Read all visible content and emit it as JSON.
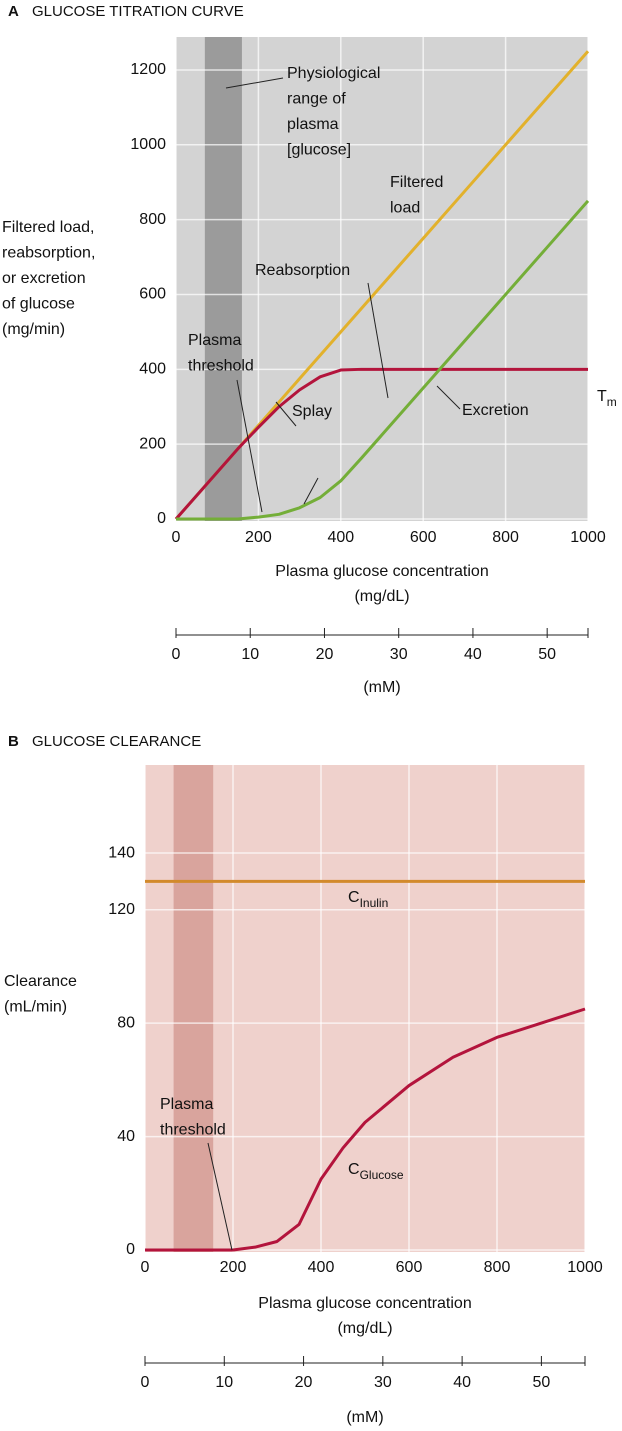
{
  "chart_data": [
    {
      "type": "line",
      "panel_label": "A",
      "title": "GLUCOSE TITRATION CURVE",
      "x": [
        0,
        50,
        100,
        150,
        200,
        250,
        300,
        350,
        400,
        450,
        500,
        600,
        700,
        800,
        900,
        1000
      ],
      "series": [
        {
          "color": "#e2b12c",
          "values": [
            0,
            62.5,
            125,
            187.5,
            250,
            312.5,
            375,
            437.5,
            500,
            562.5,
            625,
            750,
            875,
            1000,
            1125,
            1250
          ]
        },
        {
          "color": "#b3143c",
          "values": [
            0,
            62.5,
            125,
            187.5,
            245,
            300,
            345,
            380,
            398,
            400,
            400,
            400,
            400,
            400,
            400,
            400
          ]
        },
        {
          "color": "#74ae38",
          "values": [
            0,
            0,
            0,
            0,
            5,
            12.5,
            30,
            57.5,
            102,
            162.5,
            225,
            350,
            475,
            600,
            725,
            850
          ]
        }
      ],
      "xlim": [
        0,
        1000
      ],
      "xticks": [
        0,
        200,
        400,
        600,
        800,
        1000
      ],
      "ylim": [
        0,
        1280
      ],
      "yticks": [
        0,
        200,
        400,
        600,
        800,
        1000,
        1200
      ],
      "grid": true,
      "background": "#d3d3d3",
      "band": {
        "range": [
          70,
          160
        ],
        "color": "#9b9b9b"
      },
      "xlabel": [
        "Plasma glucose concentration",
        "(mg/dL)"
      ],
      "ylabel": [
        "Filtered load,",
        "reabsorption,",
        "or excretion",
        "of glucose",
        "(mg/min)"
      ],
      "x2lim": [
        0,
        55.5
      ],
      "x2ticks": [
        0,
        10,
        20,
        30,
        40,
        50
      ],
      "x2label": "(mM)",
      "annotations": [
        {
          "text": [
            "Physiological",
            "range of",
            "plasma",
            "[glucose]"
          ]
        },
        {
          "text": [
            "Filtered",
            "load"
          ]
        },
        {
          "text": [
            "Reabsorption"
          ]
        },
        {
          "text": [
            "Plasma",
            "threshold"
          ]
        },
        {
          "text": [
            "Splay"
          ]
        },
        {
          "text": [
            "Excretion"
          ]
        },
        {
          "text": [
            "T"
          ],
          "sub": "m"
        }
      ]
    },
    {
      "type": "line",
      "panel_label": "B",
      "title": "GLUCOSE CLEARANCE",
      "x": [
        0,
        100,
        200,
        250,
        300,
        350,
        400,
        450,
        500,
        600,
        700,
        800,
        900,
        1000
      ],
      "series": [
        {
          "color": "#d28a2c",
          "values": [
            130,
            130,
            130,
            130,
            130,
            130,
            130,
            130,
            130,
            130,
            130,
            130,
            130,
            130
          ]
        },
        {
          "color": "#b3143c",
          "values": [
            0,
            0,
            0,
            1,
            3,
            9,
            25,
            36,
            45,
            58,
            68,
            75,
            80,
            85
          ]
        }
      ],
      "xlim": [
        0,
        1000
      ],
      "xticks": [
        0,
        200,
        400,
        600,
        800,
        1000
      ],
      "ylim": [
        0,
        170
      ],
      "yticks": [
        0,
        40,
        80,
        120,
        140
      ],
      "grid": true,
      "background": "#efd1cc",
      "band": {
        "range": [
          65,
          155
        ],
        "color": "#d9a49d"
      },
      "xlabel": [
        "Plasma glucose concentration",
        "(mg/dL)"
      ],
      "ylabel": [
        "Clearance",
        "(mL/min)"
      ],
      "x2lim": [
        0,
        55.5
      ],
      "x2ticks": [
        0,
        10,
        20,
        30,
        40,
        50
      ],
      "x2label": "(mM)",
      "annotations": [
        {
          "text": [
            "C"
          ],
          "sub": "Inulin"
        },
        {
          "text": [
            "Plasma",
            "threshold"
          ]
        },
        {
          "text": [
            "C"
          ],
          "sub": "Glucose"
        }
      ]
    }
  ]
}
